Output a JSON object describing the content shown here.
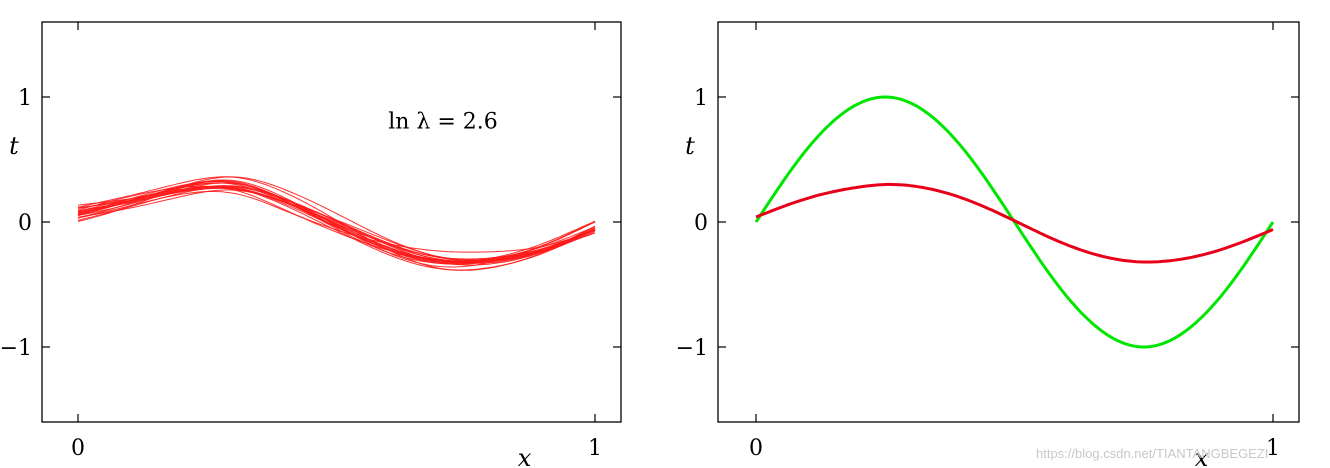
{
  "chart_data": [
    {
      "type": "line",
      "panel": "left",
      "xlim": [
        0,
        1
      ],
      "ylim": [
        -1.6,
        1.6
      ],
      "xticks": [
        0,
        1
      ],
      "yticks": [
        -1,
        0,
        1
      ],
      "xtick_labels": [
        "0",
        "1"
      ],
      "ytick_labels": [
        "−1",
        "0",
        "1"
      ],
      "xlabel": "x",
      "ylabel": "t",
      "annotation": "ln λ = 2.6",
      "grid": false,
      "line_color": "#ff1a1a",
      "num_curves": 20,
      "mean_curve": {
        "x": [
          0,
          0.1,
          0.2,
          0.3,
          0.4,
          0.5,
          0.6,
          0.7,
          0.8,
          0.9,
          1.0
        ],
        "y": [
          0.07,
          0.17,
          0.27,
          0.3,
          0.17,
          -0.02,
          -0.2,
          -0.31,
          -0.31,
          -0.22,
          -0.05
        ]
      }
    },
    {
      "type": "line",
      "panel": "right",
      "xlim": [
        0,
        1
      ],
      "ylim": [
        -1.6,
        1.6
      ],
      "xticks": [
        0,
        1
      ],
      "yticks": [
        -1,
        0,
        1
      ],
      "xtick_labels": [
        "0",
        "1"
      ],
      "ytick_labels": [
        "−1",
        "0",
        "1"
      ],
      "xlabel": "x",
      "ylabel": "t",
      "grid": false,
      "series": [
        {
          "color": "#00e600",
          "x": [
            0,
            0.1,
            0.2,
            0.25,
            0.3,
            0.4,
            0.5,
            0.6,
            0.7,
            0.75,
            0.8,
            0.9,
            1.0
          ],
          "y": [
            0,
            0.59,
            0.95,
            1.0,
            0.95,
            0.59,
            0,
            -0.59,
            -0.95,
            -1.0,
            -0.95,
            -0.59,
            0
          ]
        },
        {
          "color": "#e8001a",
          "x": [
            0,
            0.1,
            0.2,
            0.25,
            0.3,
            0.4,
            0.5,
            0.6,
            0.7,
            0.75,
            0.8,
            0.9,
            1.0
          ],
          "y": [
            0.04,
            0.19,
            0.28,
            0.3,
            0.29,
            0.19,
            0.01,
            -0.18,
            -0.3,
            -0.32,
            -0.31,
            -0.22,
            -0.06
          ]
        }
      ]
    }
  ],
  "watermark": "https://blog.csdn.net/TIANTANGBEGEZI"
}
